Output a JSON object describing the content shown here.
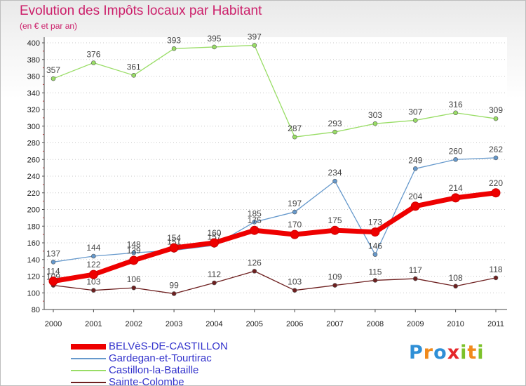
{
  "header": {
    "title": "Evolution des Impôts locaux par Habitant",
    "subtitle": "(en € et par an)"
  },
  "logo": {
    "letters": [
      "P",
      "r",
      "o",
      "x",
      "i",
      "t",
      "i"
    ],
    "colors": [
      "#2f8fd6",
      "#f08a1c",
      "#2f8fd6",
      "#e5262a",
      "#7cc22a",
      "#f08a1c",
      "#7cc22a"
    ]
  },
  "chart_data": {
    "type": "line",
    "title": "Evolution des Impôts locaux par Habitant",
    "subtitle": "(en € et par an)",
    "xlabel": "",
    "ylabel": "",
    "ylim": [
      80,
      400
    ],
    "ytick_step": 20,
    "grid": "horizontal dotted",
    "categories": [
      "2000",
      "2001",
      "2002",
      "2003",
      "2004",
      "2005",
      "2006",
      "2007",
      "2008",
      "2009",
      "2010",
      "2011"
    ],
    "series": [
      {
        "name": "Sainte-Colombe",
        "color": "#6e2020",
        "values": [
          109,
          103,
          106,
          99,
          112,
          126,
          103,
          109,
          115,
          117,
          108,
          118
        ]
      },
      {
        "name": "Castillon-la-Bataille",
        "color": "#99dd66",
        "values": [
          357,
          376,
          361,
          393,
          395,
          397,
          287,
          293,
          303,
          307,
          316,
          309
        ]
      },
      {
        "name": "Gardegan-et-Tourtirac",
        "color": "#6699cc",
        "values": [
          137,
          144,
          148,
          151,
          157,
          185,
          197,
          234,
          146,
          249,
          260,
          262
        ]
      },
      {
        "name": "BELVèS-DE-CASTILLON",
        "color": "#ee0000",
        "values": [
          114,
          122,
          139,
          154,
          160,
          175,
          170,
          175,
          173,
          204,
          214,
          220
        ]
      }
    ],
    "legend": {
      "position": "bottom-left",
      "entries": [
        "BELVèS-DE-CASTILLON",
        "Gardegan-et-Tourtirac",
        "Castillon-la-Bataille",
        "Sainte-Colombe"
      ]
    }
  }
}
